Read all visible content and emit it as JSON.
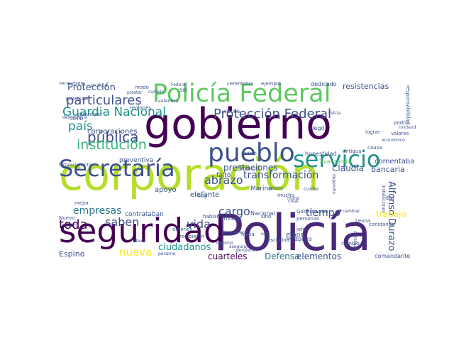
{
  "palette": {
    "purple": "#440154",
    "indigo": "#3b528b",
    "teal": "#21918c",
    "green": "#5ec962",
    "lime": "#b5de2b",
    "yellow": "#fde725",
    "dark_blue": "#31688e",
    "sea": "#35b779"
  },
  "cloud": {
    "words": [
      {
        "text": "corporación",
        "color": "#b5de2b"
      },
      {
        "text": "gobierno",
        "color": "#440154"
      },
      {
        "text": "Policía",
        "color": "#482878"
      },
      {
        "text": "seguridad",
        "color": "#440154"
      },
      {
        "text": "Policía Federal",
        "color": "#5ec962"
      },
      {
        "text": "pueblo",
        "color": "#3b528b"
      },
      {
        "text": "servicio",
        "color": "#21918c"
      },
      {
        "text": "Secretaría",
        "color": "#3b528b"
      },
      {
        "text": "Guardia Nacional",
        "color": "#21918c"
      },
      {
        "text": "Protección Federal",
        "color": "#3b528b"
      },
      {
        "text": "particulares",
        "color": "#3b528b"
      },
      {
        "text": "Protección",
        "color": "#3b528b"
      },
      {
        "text": "país",
        "color": "#21918c"
      },
      {
        "text": "pública",
        "color": "#3e4a89"
      },
      {
        "text": "institución",
        "color": "#35b779"
      },
      {
        "text": "toda",
        "color": "#440154"
      },
      {
        "text": "saben",
        "color": "#3e4a89"
      },
      {
        "text": "vida",
        "color": "#3e4a89"
      },
      {
        "text": "cargo",
        "color": "#3b528b"
      },
      {
        "text": "empresas",
        "color": "#2a788e"
      },
      {
        "text": "abrazo",
        "color": "#3b528b"
      },
      {
        "text": "transformación",
        "color": "#3b528b"
      },
      {
        "text": "tiempo",
        "color": "#3b528b"
      },
      {
        "text": "nueva",
        "color": "#fde725"
      },
      {
        "text": "ciudadanos",
        "color": "#21918c"
      },
      {
        "text": "cuarteles",
        "color": "#440154"
      },
      {
        "text": "Defensa",
        "color": "#2a788e"
      },
      {
        "text": "elementos",
        "color": "#3b528b"
      },
      {
        "text": "prestaciones",
        "color": "#3b528b"
      },
      {
        "text": "corporaciones",
        "color": "#3b528b"
      },
      {
        "text": "Alfonso Durazo",
        "color": "#3b528b"
      },
      {
        "text": "apoyo",
        "color": "#3b528b"
      },
      {
        "text": "elefante",
        "color": "#3b528b"
      },
      {
        "text": "bancaria",
        "color": "#3b528b"
      },
      {
        "text": "Claudia",
        "color": "#3b528b"
      },
      {
        "text": "resistencias",
        "color": "#3b528b"
      },
      {
        "text": "comentaba",
        "color": "#3b528b"
      },
      {
        "text": "trabajo",
        "color": "#fde725"
      },
      {
        "text": "preventiva",
        "color": "#3b528b"
      },
      {
        "text": "Espino",
        "color": "#3b528b"
      },
      {
        "text": "contrataban",
        "color": "#3b528b"
      },
      {
        "text": "faltó",
        "color": "#3b528b"
      },
      {
        "text": "ceremonia",
        "color": "#3b528b"
      },
      {
        "text": "ejemplo",
        "color": "#3b528b"
      },
      {
        "text": "dedicado",
        "color": "#3b528b"
      },
      {
        "text": "honestidad",
        "color": "#3b528b"
      },
      {
        "text": "Marina",
        "color": "#3b528b"
      },
      {
        "text": "etapa",
        "color": "#3b528b"
      },
      {
        "text": "comandante",
        "color": "#3b528b"
      },
      {
        "text": "Gobernación",
        "color": "#3b528b"
      },
      {
        "text": "Nacional",
        "color": "#3b528b"
      },
      {
        "text": "personas",
        "color": "#3b528b"
      },
      {
        "text": "hoy",
        "color": "#3b528b"
      },
      {
        "text": "avanzando",
        "color": "#5ec962"
      },
      {
        "text": "cambio",
        "color": "#3b528b"
      },
      {
        "text": "apoya",
        "color": "#3b528b"
      },
      {
        "text": "mejor",
        "color": "#3b528b"
      },
      {
        "text": "Vizuet",
        "color": "#3b528b"
      },
      {
        "text": "existe",
        "color": "#3b528b"
      },
      {
        "text": "llegó",
        "color": "#3b528b"
      },
      {
        "text": "cuidar",
        "color": "#3b528b"
      },
      {
        "text": "veces",
        "color": "#3b528b"
      },
      {
        "text": "dar",
        "color": "#3b528b"
      },
      {
        "text": "sino",
        "color": "#3b528b"
      },
      {
        "text": "modo",
        "color": "#3b528b"
      },
      {
        "text": "privadas",
        "color": "#3b528b"
      },
      {
        "text": "Federal",
        "color": "#3b528b"
      },
      {
        "text": "sol",
        "color": "#3b528b"
      },
      {
        "text": "hablar",
        "color": "#3b528b"
      },
      {
        "text": "jefe",
        "color": "#3b528b"
      },
      {
        "text": "podría",
        "color": "#3b528b"
      },
      {
        "text": "garantizar",
        "color": "#3b528b"
      },
      {
        "text": "valores",
        "color": "#3b528b"
      },
      {
        "text": "regiones",
        "color": "#3b528b"
      },
      {
        "text": "mucho",
        "color": "#3b528b"
      },
      {
        "text": "ordenes",
        "color": "#3b528b"
      },
      {
        "text": "recibieron",
        "color": "#3b528b"
      },
      {
        "text": "disciplina",
        "color": "#3b528b"
      },
      {
        "text": "Leona",
        "color": "#3b528b"
      },
      {
        "text": "reformó",
        "color": "#3b528b"
      },
      {
        "text": "cambiar",
        "color": "#3b528b"
      },
      {
        "text": "Nuevo",
        "color": "#3b528b"
      },
      {
        "text": "celebró",
        "color": "#3b528b"
      },
      {
        "text": "responsabilidad",
        "color": "#3b528b"
      },
      {
        "text": "causa",
        "color": "#3b528b"
      },
      {
        "text": "constando",
        "color": "#3b528b"
      },
      {
        "text": "hacia",
        "color": "#3b528b"
      },
      {
        "text": "lograr",
        "color": "#3b528b"
      },
      {
        "text": "antigua",
        "color": "#3b528b"
      },
      {
        "text": "fortalecimiento",
        "color": "#3b528b"
      },
      {
        "text": "democracia",
        "color": "#3b528b"
      },
      {
        "text": "protección",
        "color": "#3b528b"
      },
      {
        "text": "salir",
        "color": "#3b528b"
      },
      {
        "text": "iniciando",
        "color": "#3b528b"
      },
      {
        "text": "cumplir",
        "color": "#3b528b"
      },
      {
        "text": "prestar",
        "color": "#3b528b"
      },
      {
        "text": "rectitud",
        "color": "#3b528b"
      },
      {
        "text": "auténtica",
        "color": "#3b528b"
      },
      {
        "text": "COVID",
        "color": "#3b528b"
      },
      {
        "text": "sólo",
        "color": "#3b528b"
      },
      {
        "text": "moral",
        "color": "#3b528b"
      },
      {
        "text": "Patria",
        "color": "#3b528b"
      },
      {
        "text": "crédito",
        "color": "#3b528b"
      },
      {
        "text": "crear",
        "color": "#3b528b"
      },
      {
        "text": "eleva",
        "color": "#3b528b"
      },
      {
        "text": "perdieron",
        "color": "#3b528b"
      },
      {
        "text": "instalaciones",
        "color": "#3b528b"
      },
      {
        "text": "asegurar",
        "color": "#3b528b"
      },
      {
        "text": "económico",
        "color": "#3b528b"
      },
      {
        "text": "dependía",
        "color": "#3b528b"
      },
      {
        "text": "construir",
        "color": "#3b528b"
      },
      {
        "text": "desaparece",
        "color": "#3b528b"
      },
      {
        "text": "pésame",
        "color": "#3b528b"
      },
      {
        "text": "necesidades",
        "color": "#3b528b"
      }
    ]
  }
}
